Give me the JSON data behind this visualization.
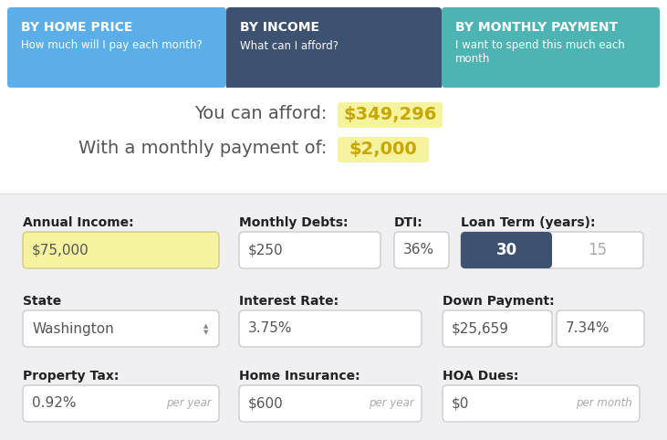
{
  "bg_color": "#f5f5f5",
  "header_bg": "#ffffff",
  "tab1_color": "#5baee8",
  "tab2_color": "#3d5170",
  "tab3_color": "#4db3b3",
  "tab1_title": "BY HOME PRICE",
  "tab1_sub": "How much will I pay each month?",
  "tab2_title": "BY INCOME",
  "tab2_sub": "What can I afford?",
  "tab3_title": "BY MONTHLY PAYMENT",
  "tab3_sub_line1": "I want to spend this much each",
  "tab3_sub_line2": "month",
  "result_text1": "You can afford: ",
  "result_val1": "$349,296",
  "result_text2": "With a monthly payment of: ",
  "result_val2": "$2,000",
  "highlight_color": "#f5f2a0",
  "highlight_text_color": "#c8a800",
  "result_text_color": "#555555",
  "input_bg": "#ffffff",
  "input_border": "#cccccc",
  "label_color": "#222222",
  "input_text_color": "#555555",
  "secondary_text_color": "#aaaaaa",
  "toggle_active_bg": "#3d5170",
  "toggle_active_text": "#ffffff",
  "toggle_inactive_text": "#aaaaaa",
  "income_highlight_bg": "#f5f2a0",
  "income_highlight_border": "#d4cc80"
}
